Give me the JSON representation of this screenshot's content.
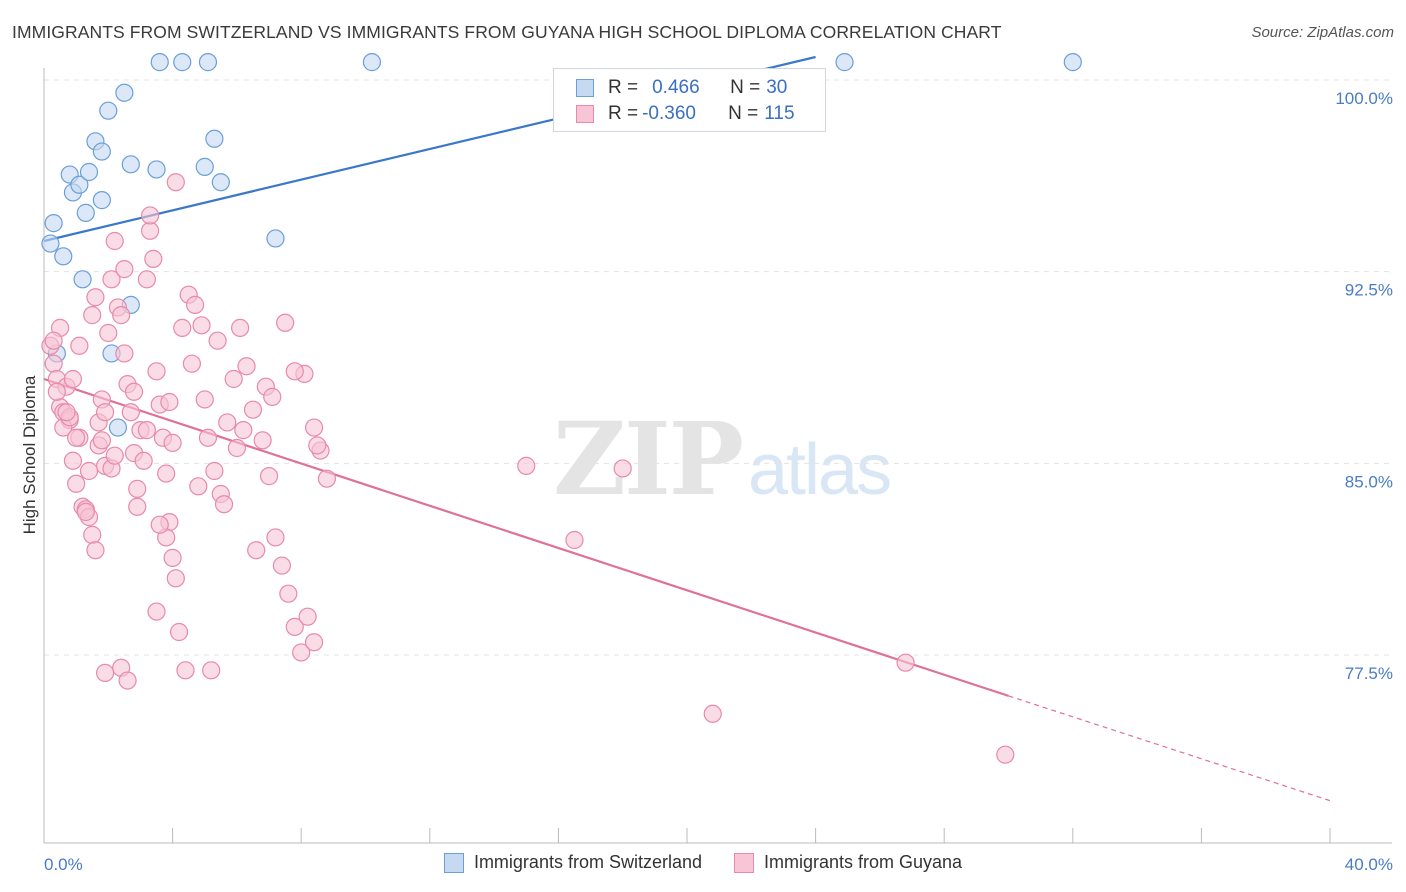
{
  "title": "IMMIGRANTS FROM SWITZERLAND VS IMMIGRANTS FROM GUYANA HIGH SCHOOL DIPLOMA CORRELATION CHART",
  "source": "Source: ZipAtlas.com",
  "watermark": {
    "zip": "ZIP",
    "atlas": "atlas"
  },
  "colors": {
    "switzerland_fill": "#c5d9f1",
    "switzerland_stroke": "#6a9fd8",
    "switzerland_line": "#3a78c9",
    "guyana_fill": "#f7c5d5",
    "guyana_stroke": "#e88aa8",
    "guyana_line": "#e0709a",
    "axis_text": "#4a7cc4",
    "grid": "#e3e3e3"
  },
  "stats": [
    {
      "r_label": "R = ",
      "r_value": "0.466",
      "n_label": "N = ",
      "n_value": "30"
    },
    {
      "r_label": "R = ",
      "r_value": "-0.360",
      "n_label": "N = ",
      "n_value": "115"
    }
  ],
  "chart_data": {
    "type": "scatter",
    "title": "IMMIGRANTS FROM SWITZERLAND VS IMMIGRANTS FROM GUYANA HIGH SCHOOL DIPLOMA CORRELATION CHART",
    "xlabel": "",
    "ylabel": "High School Diploma",
    "xlim": [
      0,
      40
    ],
    "ylim": [
      70.5,
      101.3
    ],
    "x_tick_labels": [
      {
        "value": 0,
        "label": "0.0%"
      },
      {
        "value": 40,
        "label": "40.0%"
      }
    ],
    "x_minor_ticks": [
      0,
      4,
      8,
      12,
      16,
      20,
      24,
      28,
      32,
      36,
      40
    ],
    "y_ticks": [
      {
        "value": 100,
        "label": "100.0%"
      },
      {
        "value": 92.5,
        "label": "92.5%"
      },
      {
        "value": 85,
        "label": "85.0%"
      },
      {
        "value": 77.5,
        "label": "77.5%"
      }
    ],
    "grid": "horizontal dashed",
    "legend": "bottom-center",
    "series": [
      {
        "name": "Immigrants from Switzerland",
        "points": [
          [
            0.3,
            94.4
          ],
          [
            0.2,
            93.6
          ],
          [
            0.6,
            93.1
          ],
          [
            0.8,
            96.3
          ],
          [
            0.9,
            95.6
          ],
          [
            1.1,
            95.9
          ],
          [
            1.3,
            94.8
          ],
          [
            1.4,
            96.4
          ],
          [
            1.6,
            97.6
          ],
          [
            1.8,
            97.2
          ],
          [
            1.8,
            95.3
          ],
          [
            2.7,
            96.7
          ],
          [
            2.0,
            98.8
          ],
          [
            2.5,
            99.5
          ],
          [
            3.6,
            100.7
          ],
          [
            4.3,
            100.7
          ],
          [
            5.1,
            100.7
          ],
          [
            3.5,
            96.5
          ],
          [
            5.0,
            96.6
          ],
          [
            5.3,
            97.7
          ],
          [
            5.5,
            96.0
          ],
          [
            7.2,
            93.8
          ],
          [
            1.2,
            92.2
          ],
          [
            2.7,
            91.2
          ],
          [
            0.4,
            89.3
          ],
          [
            2.1,
            89.3
          ],
          [
            2.3,
            86.4
          ],
          [
            10.2,
            100.7
          ],
          [
            24.9,
            100.7
          ],
          [
            32.0,
            100.7
          ]
        ],
        "trend": {
          "x": [
            0,
            24
          ],
          "y": [
            93.7,
            100.9
          ]
        }
      },
      {
        "name": "Immigrants from Guyana",
        "points": [
          [
            0.2,
            89.6
          ],
          [
            0.3,
            88.9
          ],
          [
            0.4,
            88.3
          ],
          [
            0.5,
            87.2
          ],
          [
            0.6,
            87.0
          ],
          [
            0.7,
            88.0
          ],
          [
            0.8,
            86.7
          ],
          [
            0.9,
            85.1
          ],
          [
            1.0,
            84.2
          ],
          [
            1.1,
            86.0
          ],
          [
            1.2,
            83.3
          ],
          [
            1.3,
            83.2
          ],
          [
            1.4,
            82.9
          ],
          [
            1.5,
            82.2
          ],
          [
            1.6,
            81.6
          ],
          [
            1.7,
            86.6
          ],
          [
            1.8,
            87.5
          ],
          [
            1.9,
            84.9
          ],
          [
            2.0,
            90.1
          ],
          [
            2.1,
            92.2
          ],
          [
            2.2,
            93.7
          ],
          [
            2.3,
            91.1
          ],
          [
            2.4,
            90.8
          ],
          [
            2.5,
            89.3
          ],
          [
            2.6,
            88.1
          ],
          [
            2.7,
            87.0
          ],
          [
            2.8,
            85.4
          ],
          [
            2.9,
            84.0
          ],
          [
            3.0,
            86.3
          ],
          [
            3.1,
            85.1
          ],
          [
            3.2,
            92.2
          ],
          [
            3.3,
            94.1
          ],
          [
            3.4,
            93.0
          ],
          [
            3.5,
            88.6
          ],
          [
            3.6,
            87.3
          ],
          [
            3.7,
            86.0
          ],
          [
            3.8,
            84.6
          ],
          [
            3.9,
            82.7
          ],
          [
            4.0,
            81.3
          ],
          [
            4.1,
            80.5
          ],
          [
            4.3,
            90.3
          ],
          [
            4.5,
            91.6
          ],
          [
            4.7,
            91.2
          ],
          [
            4.9,
            90.4
          ],
          [
            5.0,
            87.5
          ],
          [
            5.1,
            86.0
          ],
          [
            5.3,
            84.7
          ],
          [
            5.5,
            83.8
          ],
          [
            5.7,
            86.6
          ],
          [
            5.9,
            88.3
          ],
          [
            6.1,
            90.3
          ],
          [
            6.3,
            88.8
          ],
          [
            6.5,
            87.1
          ],
          [
            6.8,
            85.9
          ],
          [
            7.0,
            84.5
          ],
          [
            7.2,
            82.1
          ],
          [
            7.4,
            81.0
          ],
          [
            7.6,
            79.9
          ],
          [
            7.8,
            78.6
          ],
          [
            8.0,
            77.6
          ],
          [
            8.2,
            79.0
          ],
          [
            8.4,
            78.0
          ],
          [
            8.6,
            85.5
          ],
          [
            8.8,
            84.4
          ],
          [
            1.9,
            87.0
          ],
          [
            2.4,
            77.0
          ],
          [
            3.5,
            79.2
          ],
          [
            3.8,
            82.1
          ],
          [
            4.2,
            78.4
          ],
          [
            4.4,
            76.9
          ],
          [
            5.2,
            76.9
          ],
          [
            6.6,
            81.6
          ],
          [
            2.6,
            76.5
          ],
          [
            1.9,
            76.8
          ],
          [
            1.3,
            83.1
          ],
          [
            0.6,
            86.4
          ],
          [
            0.9,
            88.3
          ],
          [
            1.1,
            89.6
          ],
          [
            1.5,
            90.8
          ],
          [
            0.5,
            90.3
          ],
          [
            0.4,
            87.8
          ],
          [
            0.8,
            86.8
          ],
          [
            1.7,
            85.7
          ],
          [
            2.1,
            84.8
          ],
          [
            2.8,
            87.8
          ],
          [
            3.2,
            86.3
          ],
          [
            3.9,
            87.4
          ],
          [
            4.6,
            88.9
          ],
          [
            5.4,
            89.8
          ],
          [
            6.2,
            86.3
          ],
          [
            6.9,
            88.0
          ],
          [
            7.5,
            90.5
          ],
          [
            8.1,
            88.5
          ],
          [
            8.5,
            85.7
          ],
          [
            0.3,
            89.8
          ],
          [
            0.7,
            87.0
          ],
          [
            1.0,
            86.0
          ],
          [
            1.4,
            84.7
          ],
          [
            1.8,
            85.9
          ],
          [
            2.2,
            85.3
          ],
          [
            2.9,
            83.3
          ],
          [
            3.6,
            82.6
          ],
          [
            4.0,
            85.8
          ],
          [
            4.8,
            84.1
          ],
          [
            5.6,
            83.4
          ],
          [
            6.0,
            85.6
          ],
          [
            7.1,
            87.6
          ],
          [
            7.8,
            88.6
          ],
          [
            8.4,
            86.4
          ],
          [
            1.6,
            91.5
          ],
          [
            2.5,
            92.6
          ],
          [
            3.3,
            94.7
          ],
          [
            4.1,
            96.0
          ],
          [
            15.0,
            84.9
          ],
          [
            16.5,
            82.0
          ],
          [
            18.0,
            84.8
          ],
          [
            20.8,
            75.2
          ],
          [
            26.8,
            77.2
          ],
          [
            29.9,
            73.6
          ]
        ],
        "trend": {
          "x": [
            0,
            30
          ],
          "y": [
            88.3,
            75.9
          ]
        },
        "trend_extension": {
          "x": [
            30,
            40
          ],
          "y": [
            75.9,
            71.8
          ]
        }
      }
    ]
  }
}
